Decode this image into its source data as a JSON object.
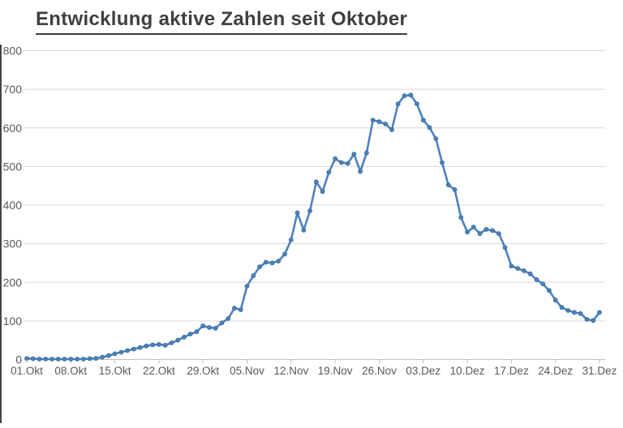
{
  "title": "Entwicklung aktive Zahlen seit Oktober",
  "chart_data": {
    "type": "line",
    "title": "Entwicklung aktive Zahlen seit Oktober",
    "xlabel": "",
    "ylabel": "",
    "ylim": [
      0,
      800
    ],
    "y_tick_step": 100,
    "y_tick_labels": [
      "0",
      "100",
      "200",
      "300",
      "400",
      "500",
      "600",
      "700",
      "800"
    ],
    "x_tick_labels": [
      "01.Okt",
      "08.Okt",
      "15.Okt",
      "22.Okt",
      "29.Okt",
      "05.Nov",
      "12.Nov",
      "19.Nov",
      "26.Nov",
      "03.Dez",
      "10.Dez",
      "17.Dez",
      "24.Dez",
      "31.Dez"
    ],
    "x_start_date": "01.Okt",
    "x_end_date": "31.Dez",
    "x_frequency": "daily",
    "x_tick_interval_days": 7,
    "grid": "horizontal",
    "legend_position": "none",
    "series": [
      {
        "name": "aktive Zahlen",
        "color": "#4f82bb",
        "marker": "circle",
        "values": [
          3,
          2,
          1,
          1,
          1,
          1,
          1,
          1,
          1,
          1,
          2,
          3,
          6,
          10,
          15,
          19,
          23,
          27,
          31,
          35,
          38,
          39,
          37,
          43,
          50,
          58,
          66,
          72,
          87,
          83,
          81,
          95,
          106,
          133,
          129,
          190,
          217,
          240,
          252,
          250,
          255,
          273,
          310,
          380,
          335,
          385,
          460,
          435,
          485,
          520,
          510,
          508,
          532,
          487,
          535,
          620,
          616,
          610,
          595,
          662,
          683,
          685,
          662,
          620,
          601,
          572,
          510,
          452,
          440,
          368,
          330,
          343,
          326,
          337,
          334,
          326,
          290,
          242,
          236,
          230,
          222,
          207,
          196,
          179,
          154,
          135,
          127,
          122,
          119,
          104,
          101,
          122
        ]
      }
    ]
  },
  "colors": {
    "series_line": "#4f82bb",
    "marker_fill": "#4f82bb",
    "marker_edge": "#3a6ea5",
    "gridline": "#d9d9d9",
    "axis_line": "#bfbfbf",
    "tick_text": "#595959",
    "title_text": "#3f3f3f",
    "background": "#ffffff"
  }
}
